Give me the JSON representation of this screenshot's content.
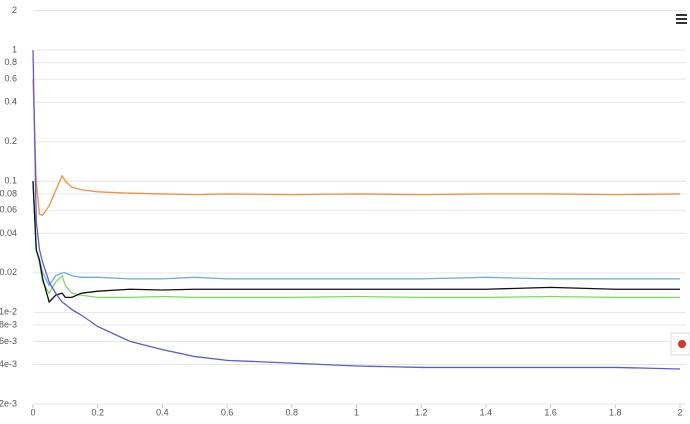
{
  "chart_data": {
    "type": "line",
    "ylog": true,
    "grid": true,
    "x": [
      0,
      0.01,
      0.02,
      0.03,
      0.05,
      0.07,
      0.09,
      0.1,
      0.12,
      0.15,
      0.2,
      0.3,
      0.4,
      0.5,
      0.6,
      0.8,
      1.0,
      1.2,
      1.4,
      1.6,
      1.8,
      2.0
    ],
    "xlim": [
      0,
      2
    ],
    "xticks": [
      0,
      0.2,
      0.4,
      0.6,
      0.8,
      1,
      1.2,
      1.4,
      1.6,
      1.8,
      2
    ],
    "ylim": [
      0.002,
      2
    ],
    "yticks": [
      {
        "value": 0.002,
        "label": "2e-3"
      },
      {
        "value": 0.004,
        "label": "4e-3"
      },
      {
        "value": 0.006,
        "label": "6e-3"
      },
      {
        "value": 0.008,
        "label": "8e-3"
      },
      {
        "value": 0.01,
        "label": "1e-2"
      },
      0.02,
      0.04,
      0.06,
      0.08,
      0.1,
      0.2,
      0.4,
      0.6,
      0.8,
      1,
      2
    ],
    "series": [
      {
        "color": "#f28f43",
        "values": [
          0.6,
          0.1,
          0.056,
          0.055,
          0.065,
          0.085,
          0.11,
          0.1,
          0.09,
          0.086,
          0.083,
          0.081,
          0.08,
          0.079,
          0.08,
          0.079,
          0.08,
          0.079,
          0.08,
          0.08,
          0.079,
          0.08
        ]
      },
      {
        "color": "#6aaee0",
        "values": [
          0.1,
          0.03,
          0.025,
          0.02,
          0.016,
          0.019,
          0.02,
          0.02,
          0.019,
          0.0185,
          0.0185,
          0.018,
          0.018,
          0.0185,
          0.018,
          0.018,
          0.018,
          0.018,
          0.0185,
          0.018,
          0.018,
          0.018
        ]
      },
      {
        "color": "#7ed96a",
        "values": [
          0.1,
          0.03,
          0.024,
          0.017,
          0.014,
          0.017,
          0.019,
          0.016,
          0.014,
          0.0135,
          0.013,
          0.013,
          0.0132,
          0.013,
          0.013,
          0.013,
          0.0132,
          0.013,
          0.013,
          0.0132,
          0.013,
          0.013
        ]
      },
      {
        "color": "#111111",
        "values": [
          0.1,
          0.03,
          0.025,
          0.018,
          0.012,
          0.0135,
          0.014,
          0.013,
          0.013,
          0.014,
          0.0145,
          0.015,
          0.0148,
          0.015,
          0.015,
          0.015,
          0.015,
          0.015,
          0.015,
          0.0155,
          0.015,
          0.015
        ]
      },
      {
        "color": "#5b5bd6",
        "values": [
          1,
          0.05,
          0.03,
          0.024,
          0.017,
          0.014,
          0.012,
          0.0115,
          0.0105,
          0.0095,
          0.0078,
          0.006,
          0.0052,
          0.0046,
          0.0043,
          0.0041,
          0.0039,
          0.0038,
          0.0038,
          0.0038,
          0.0038,
          0.0037
        ]
      }
    ]
  }
}
